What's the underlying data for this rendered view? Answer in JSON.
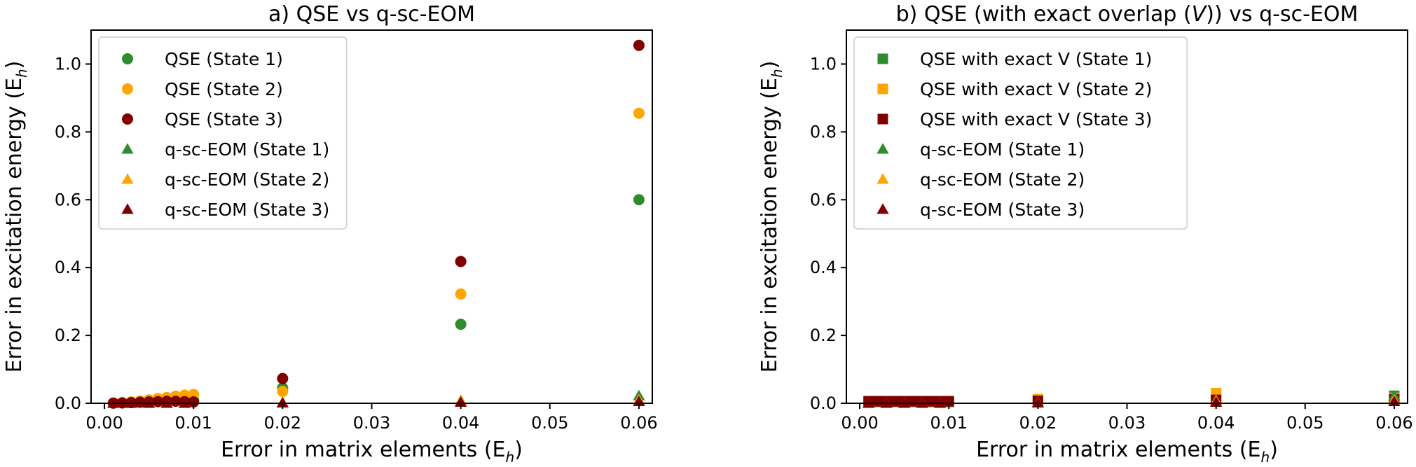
{
  "colors": {
    "state1": "#2e8b2e",
    "state2": "#ffa500",
    "state3": "#800000"
  },
  "chart_data": [
    {
      "type": "scatter",
      "title": "a) QSE vs q-sc-EOM",
      "xlabel": "Error in matrix elements (E",
      "xlabel_sub": "h",
      "xlabel_end": ")",
      "ylabel": "Error in excitation energy (E",
      "ylabel_sub": "h",
      "ylabel_end": ")",
      "xlim": [
        -0.0015,
        0.0615
      ],
      "ylim": [
        0,
        1.1
      ],
      "xticks": [
        0.0,
        0.01,
        0.02,
        0.03,
        0.04,
        0.05,
        0.06
      ],
      "xtick_labels": [
        "0.00",
        "0.01",
        "0.02",
        "0.03",
        "0.04",
        "0.05",
        "0.06"
      ],
      "yticks": [
        0.0,
        0.2,
        0.4,
        0.6,
        0.8,
        1.0
      ],
      "ytick_labels": [
        "0.0",
        "0.2",
        "0.4",
        "0.6",
        "0.8",
        "1.0"
      ],
      "legend_position": "upper-left",
      "series": [
        {
          "name": "QSE (State 1)",
          "marker": "circle",
          "color_key": "state1",
          "x": [
            0.001,
            0.002,
            0.003,
            0.004,
            0.005,
            0.006,
            0.007,
            0.008,
            0.009,
            0.01,
            0.02,
            0.04,
            0.06
          ],
          "y": [
            0.0005,
            0.001,
            0.002,
            0.003,
            0.004,
            0.005,
            0.006,
            0.007,
            0.008,
            0.009,
            0.045,
            0.233,
            0.6
          ]
        },
        {
          "name": "QSE (State 2)",
          "marker": "circle",
          "color_key": "state2",
          "x": [
            0.001,
            0.002,
            0.003,
            0.004,
            0.005,
            0.006,
            0.007,
            0.008,
            0.009,
            0.01,
            0.02,
            0.04,
            0.06
          ],
          "y": [
            0.001,
            0.002,
            0.004,
            0.007,
            0.01,
            0.014,
            0.017,
            0.021,
            0.024,
            0.026,
            0.035,
            0.322,
            0.855
          ]
        },
        {
          "name": "QSE (State 3)",
          "marker": "circle",
          "color_key": "state3",
          "x": [
            0.001,
            0.002,
            0.003,
            0.004,
            0.005,
            0.006,
            0.007,
            0.008,
            0.009,
            0.01,
            0.02,
            0.04,
            0.06
          ],
          "y": [
            0.0005,
            0.001,
            0.002,
            0.003,
            0.004,
            0.005,
            0.006,
            0.006,
            0.005,
            0.004,
            0.073,
            0.418,
            1.055
          ]
        },
        {
          "name": "q-sc-EOM (State 1)",
          "marker": "triangle",
          "color_key": "state1",
          "x": [
            0.001,
            0.003,
            0.005,
            0.007,
            0.009,
            0.02,
            0.04,
            0.06
          ],
          "y": [
            0.0,
            0.0,
            0.0,
            0.0,
            0.0,
            0.002,
            0.008,
            0.022
          ]
        },
        {
          "name": "q-sc-EOM (State 2)",
          "marker": "triangle",
          "color_key": "state2",
          "x": [
            0.001,
            0.003,
            0.005,
            0.007,
            0.009,
            0.02,
            0.04,
            0.06
          ],
          "y": [
            0.0,
            0.0,
            0.0,
            0.0,
            0.0,
            0.002,
            0.008,
            0.01
          ]
        },
        {
          "name": "q-sc-EOM (State 3)",
          "marker": "triangle",
          "color_key": "state3",
          "x": [
            0.001,
            0.003,
            0.005,
            0.007,
            0.009,
            0.02,
            0.04,
            0.06
          ],
          "y": [
            0.0,
            0.0,
            0.0,
            0.0,
            0.0,
            0.001,
            0.003,
            0.005
          ]
        }
      ]
    },
    {
      "type": "scatter",
      "title": "b) QSE (with exact overlap (V)) vs q-sc-EOM",
      "title_pre": "b) QSE (with exact overlap (",
      "title_italic": "V",
      "title_post": ")) vs q-sc-EOM",
      "xlabel": "Error in matrix elements (E",
      "xlabel_sub": "h",
      "xlabel_end": ")",
      "ylabel": "Error in excitation energy (E",
      "ylabel_sub": "h",
      "ylabel_end": ")",
      "xlim": [
        -0.0015,
        0.0615
      ],
      "ylim": [
        0,
        1.1
      ],
      "xticks": [
        0.0,
        0.01,
        0.02,
        0.03,
        0.04,
        0.05,
        0.06
      ],
      "xtick_labels": [
        "0.00",
        "0.01",
        "0.02",
        "0.03",
        "0.04",
        "0.05",
        "0.06"
      ],
      "yticks": [
        0.0,
        0.2,
        0.4,
        0.6,
        0.8,
        1.0
      ],
      "ytick_labels": [
        "0.0",
        "0.2",
        "0.4",
        "0.6",
        "0.8",
        "1.0"
      ],
      "legend_position": "upper-left",
      "series": [
        {
          "name": "QSE with exact V (State 1)",
          "marker": "square",
          "color_key": "state1",
          "x": [
            0.001,
            0.002,
            0.003,
            0.004,
            0.005,
            0.006,
            0.007,
            0.008,
            0.009,
            0.01,
            0.02,
            0.04,
            0.06
          ],
          "y": [
            0.004,
            0.004,
            0.004,
            0.004,
            0.004,
            0.004,
            0.004,
            0.004,
            0.004,
            0.004,
            0.008,
            0.012,
            0.022
          ]
        },
        {
          "name": "QSE with exact V (State 2)",
          "marker": "square",
          "color_key": "state2",
          "x": [
            0.001,
            0.002,
            0.003,
            0.004,
            0.005,
            0.006,
            0.007,
            0.008,
            0.009,
            0.01,
            0.02,
            0.04,
            0.06
          ],
          "y": [
            0.006,
            0.006,
            0.006,
            0.006,
            0.006,
            0.006,
            0.006,
            0.006,
            0.006,
            0.006,
            0.012,
            0.03,
            0.016
          ]
        },
        {
          "name": "QSE with exact V (State 3)",
          "marker": "square",
          "color_key": "state3",
          "x": [
            0.001,
            0.002,
            0.003,
            0.004,
            0.005,
            0.006,
            0.007,
            0.008,
            0.009,
            0.01,
            0.02,
            0.04,
            0.06
          ],
          "y": [
            0.006,
            0.006,
            0.006,
            0.006,
            0.006,
            0.006,
            0.006,
            0.006,
            0.006,
            0.006,
            0.007,
            0.01,
            0.012
          ]
        },
        {
          "name": "q-sc-EOM (State 1)",
          "marker": "triangle",
          "color_key": "state1",
          "x": [
            0.001,
            0.003,
            0.005,
            0.007,
            0.009,
            0.02,
            0.04,
            0.06
          ],
          "y": [
            0.0,
            0.0,
            0.0,
            0.0,
            0.0,
            0.002,
            0.008,
            0.022
          ]
        },
        {
          "name": "q-sc-EOM (State 2)",
          "marker": "triangle",
          "color_key": "state2",
          "x": [
            0.001,
            0.003,
            0.005,
            0.007,
            0.009,
            0.02,
            0.04,
            0.06
          ],
          "y": [
            0.0,
            0.0,
            0.0,
            0.0,
            0.0,
            0.002,
            0.008,
            0.01
          ]
        },
        {
          "name": "q-sc-EOM (State 3)",
          "marker": "triangle",
          "color_key": "state3",
          "x": [
            0.001,
            0.003,
            0.005,
            0.007,
            0.009,
            0.02,
            0.04,
            0.06
          ],
          "y": [
            0.0,
            0.0,
            0.0,
            0.0,
            0.0,
            0.001,
            0.003,
            0.005
          ]
        }
      ]
    }
  ]
}
